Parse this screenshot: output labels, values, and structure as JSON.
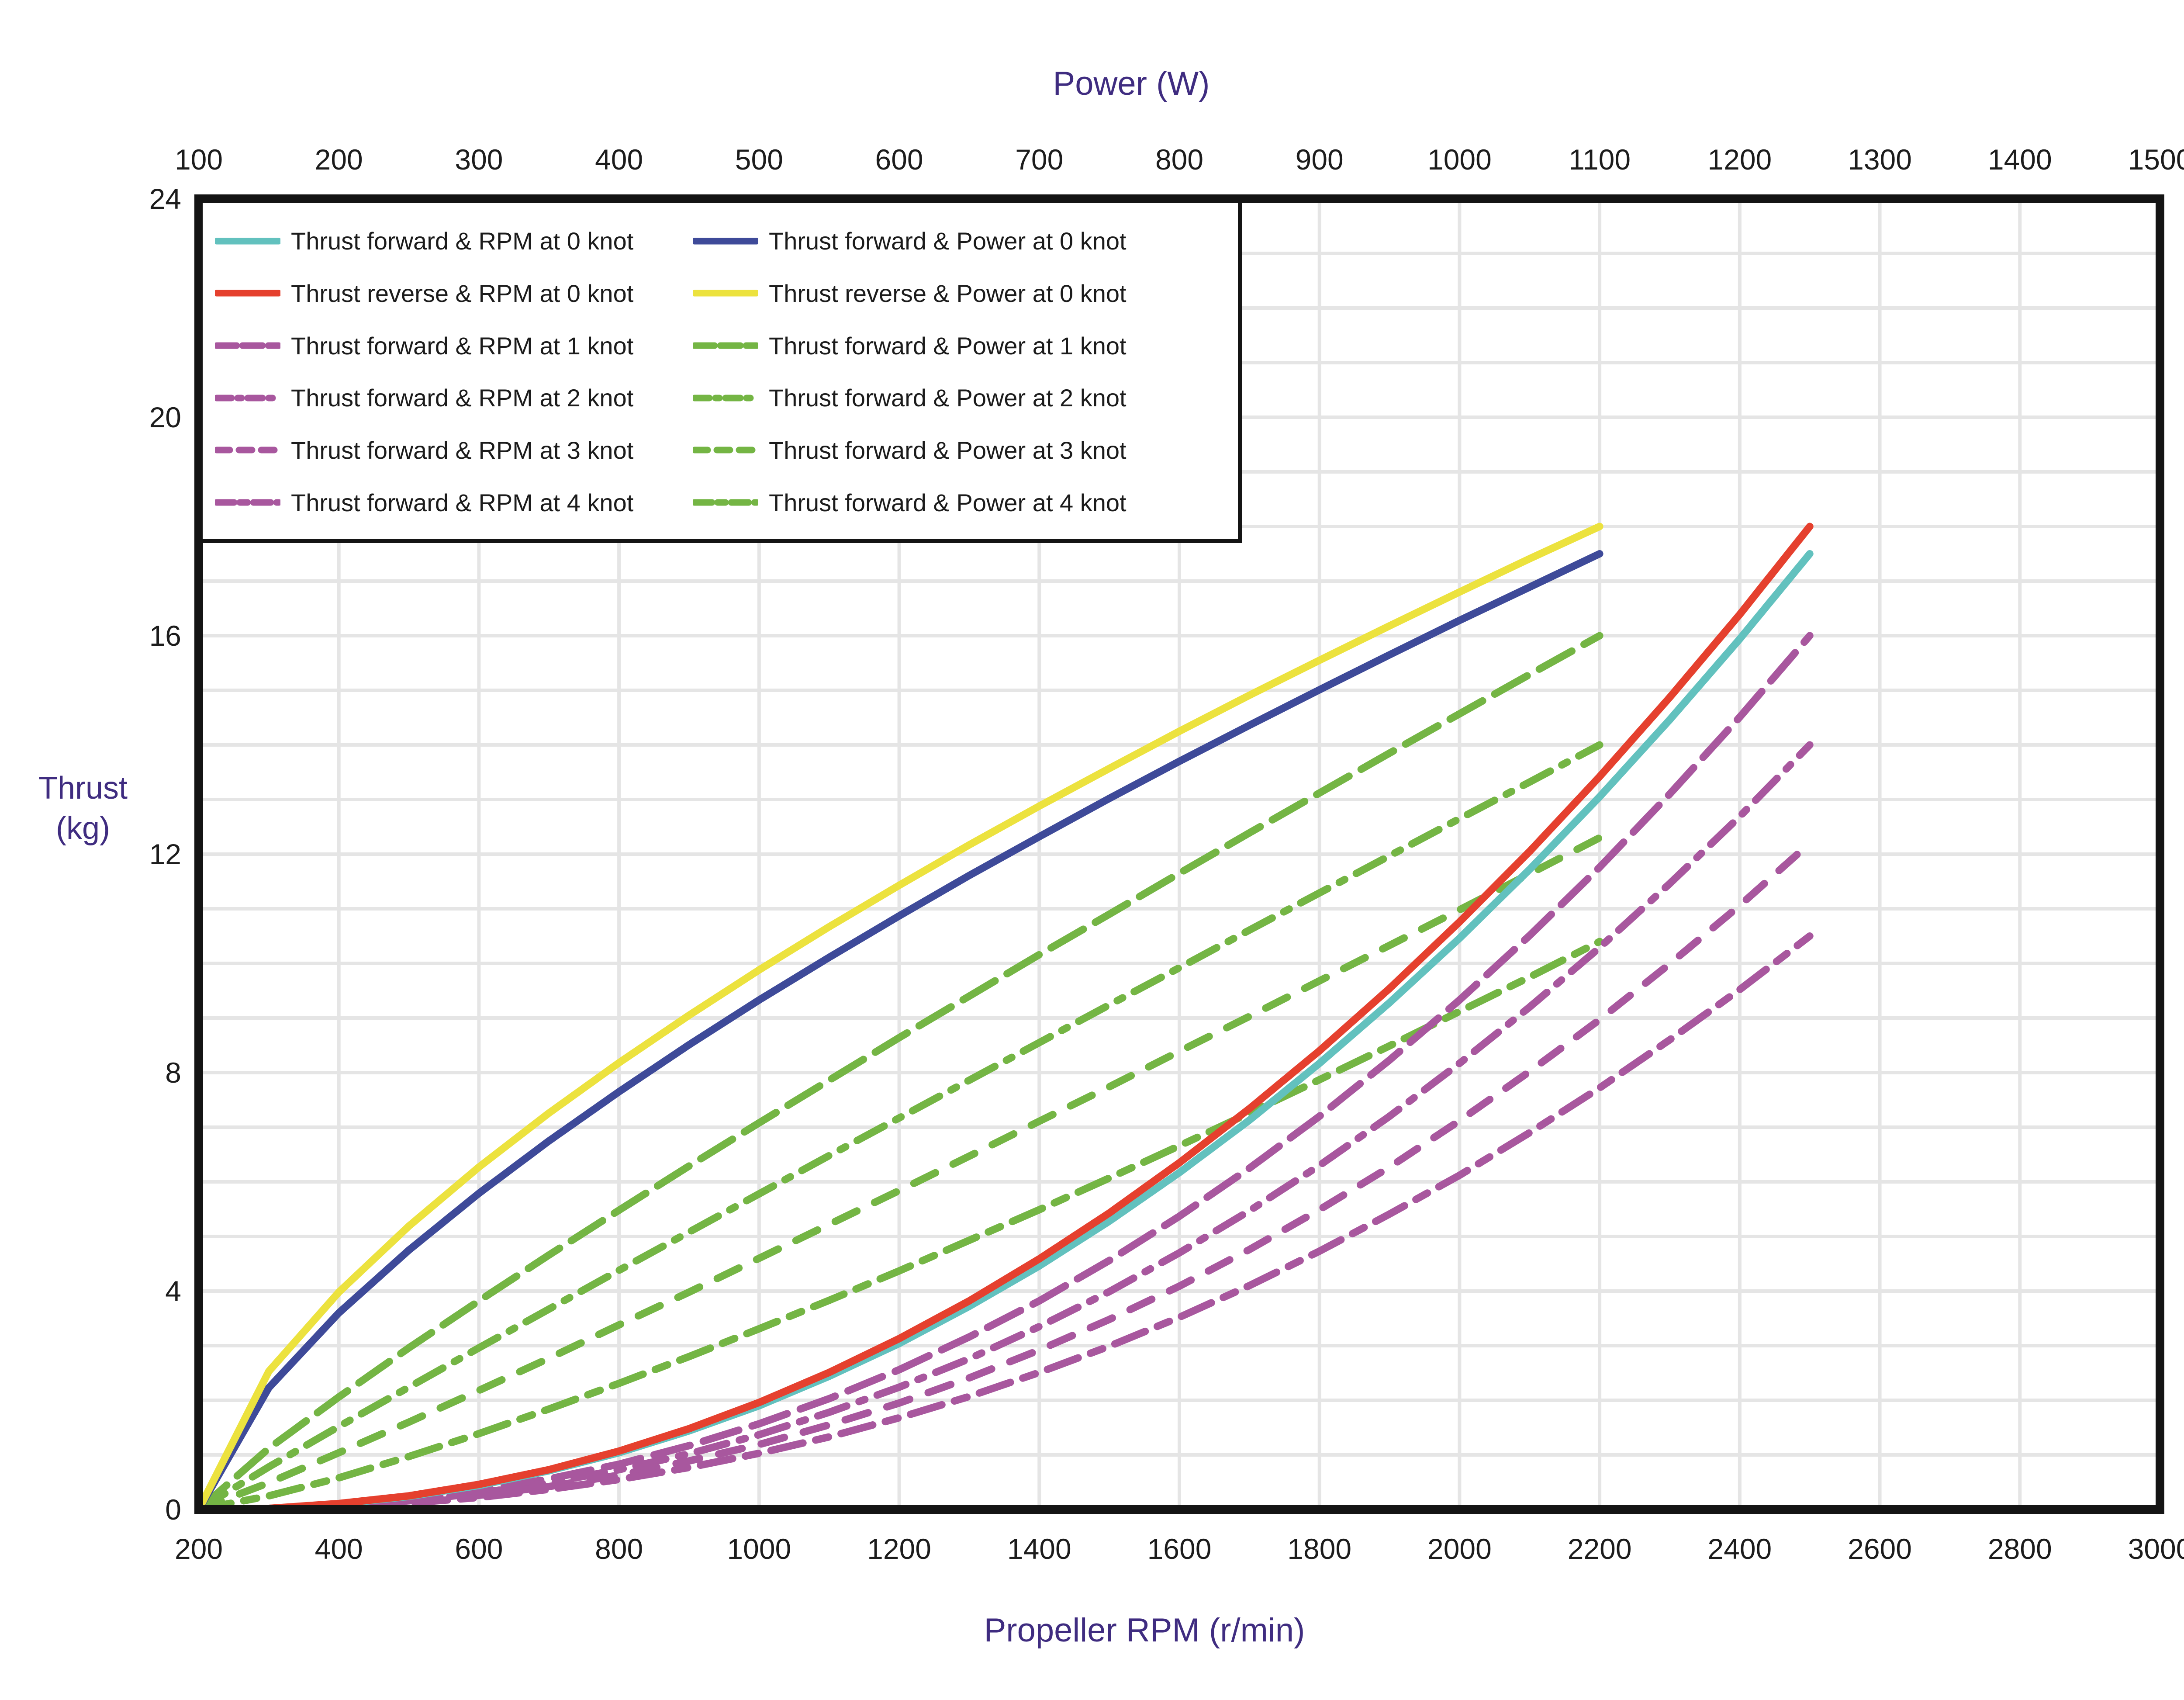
{
  "colors": {
    "teal": "#62C1BE",
    "red": "#E5402E",
    "blue": "#3E4A99",
    "yellow": "#ECE23E",
    "purple": "#A8579E",
    "green": "#74B544",
    "grid": "#E5E5E5",
    "frame": "#141414",
    "title_purple": "#3F2C80",
    "tick_text": "#1c1c1c"
  },
  "legend": {
    "rows": [
      {
        "left_label": "Thrust forward &  RPM at 0 knot",
        "left_color": "teal",
        "left_dash": "solid",
        "right_label": "Thrust forward & Power at 0 knot",
        "right_color": "blue",
        "right_dash": "solid"
      },
      {
        "left_label": "Thrust reverse  &  RPM at 0 knot",
        "left_color": "red",
        "left_dash": "solid",
        "right_label": "Thrust reverse & Power at 0 knot",
        "right_color": "yellow",
        "right_dash": "solid"
      },
      {
        "left_label": "Thrust forward &  RPM at 1 knot",
        "left_color": "purple",
        "left_dash": "longdash",
        "right_label": "Thrust forward & Power at 1 knot",
        "right_color": "green",
        "right_dash": "longdash"
      },
      {
        "left_label": "Thrust forward &  RPM at 2 knot",
        "left_color": "purple",
        "left_dash": "dashdot",
        "right_label": "Thrust forward & Power at 2 knot",
        "right_color": "green",
        "right_dash": "dashdot"
      },
      {
        "left_label": "Thrust forward &  RPM at 3 knot",
        "left_color": "purple",
        "left_dash": "dash",
        "right_label": "Thrust forward & Power at 3 knot",
        "right_color": "green",
        "right_dash": "dash"
      },
      {
        "left_label": "Thrust forward &  RPM at 4 knot",
        "left_color": "purple",
        "left_dash": "longshort",
        "right_label": "Thrust forward & Power at 4 knot",
        "right_color": "green",
        "right_dash": "longshort"
      }
    ]
  },
  "chart_data": {
    "type": "line",
    "title": "",
    "top_axis": {
      "title": "Power (W)",
      "ticks": [
        100,
        200,
        300,
        400,
        500,
        600,
        700,
        800,
        900,
        1000,
        1100,
        1200,
        1300,
        1400,
        1500
      ],
      "range": [
        100,
        1500
      ]
    },
    "bottom_axis": {
      "title": "Propeller RPM (r/min)",
      "ticks": [
        200,
        400,
        600,
        800,
        1000,
        1200,
        1400,
        1600,
        1800,
        2000,
        2200,
        2400,
        2600,
        2800,
        3000
      ],
      "range": [
        200,
        3000
      ]
    },
    "left_axis": {
      "title_line1": "Thrust",
      "title_line2": "(kg)",
      "ticks": [
        0,
        4,
        8,
        12,
        16,
        20,
        24
      ],
      "range": [
        0,
        24
      ]
    },
    "grid": {
      "x_step_rpm": 200,
      "y_step_kg": 1
    },
    "series": [
      {
        "name": "Thrust forward & Power at 1 knot",
        "axis": "power",
        "color": "green",
        "dash": "longdash",
        "x": [
          100,
          150,
          200,
          250,
          300,
          350,
          400,
          450,
          500,
          550,
          600,
          650,
          700,
          750,
          800,
          850,
          900,
          950,
          1000,
          1050,
          1100
        ],
        "y": [
          0,
          1.12,
          2.06,
          2.96,
          3.82,
          4.66,
          5.48,
          6.29,
          7.08,
          7.86,
          8.64,
          9.4,
          10.16,
          10.9,
          11.65,
          12.39,
          13.12,
          13.85,
          14.57,
          15.29,
          16
        ]
      },
      {
        "name": "Thrust forward & Power at 2 knot",
        "axis": "power",
        "color": "green",
        "dash": "dashdot",
        "x": [
          100,
          150,
          200,
          250,
          300,
          350,
          400,
          450,
          500,
          550,
          600,
          650,
          700,
          750,
          800,
          850,
          900,
          950,
          1000,
          1050,
          1100
        ],
        "y": [
          0,
          0.78,
          1.52,
          2.24,
          2.96,
          3.67,
          4.38,
          5.08,
          5.78,
          6.48,
          7.17,
          7.86,
          8.55,
          9.24,
          9.92,
          10.61,
          11.29,
          11.97,
          12.65,
          13.32,
          14
        ]
      },
      {
        "name": "Thrust forward & Power at 3 knot",
        "axis": "power",
        "color": "green",
        "dash": "dash",
        "x": [
          100,
          150,
          200,
          250,
          300,
          350,
          400,
          450,
          500,
          550,
          600,
          650,
          700,
          750,
          800,
          850,
          900,
          950,
          1000,
          1050,
          1100
        ],
        "y": [
          0,
          0.49,
          1.04,
          1.6,
          2.18,
          2.77,
          3.38,
          3.98,
          4.6,
          5.22,
          5.84,
          6.47,
          7.11,
          7.74,
          8.39,
          9.03,
          9.68,
          10.33,
          10.98,
          11.64,
          12.3
        ]
      },
      {
        "name": "Thrust forward & Power at 4 knot",
        "axis": "power",
        "color": "green",
        "dash": "longshort",
        "x": [
          100,
          150,
          200,
          250,
          300,
          350,
          400,
          450,
          500,
          550,
          600,
          650,
          700,
          750,
          800,
          850,
          900,
          950,
          1000,
          1050,
          1100
        ],
        "y": [
          0,
          0.25,
          0.58,
          0.97,
          1.39,
          1.84,
          2.31,
          2.8,
          3.31,
          3.83,
          4.37,
          4.93,
          5.49,
          6.07,
          6.66,
          7.26,
          7.87,
          8.49,
          9.12,
          9.75,
          10.4
        ]
      },
      {
        "name": "Thrust forward & Power at 0 knot",
        "axis": "power",
        "color": "blue",
        "dash": "solid",
        "x": [
          100,
          150,
          200,
          250,
          300,
          350,
          400,
          450,
          500,
          550,
          600,
          650,
          700,
          750,
          800,
          850,
          900,
          950,
          1000,
          1050,
          1100
        ],
        "y": [
          0,
          2.23,
          3.6,
          4.75,
          5.79,
          6.75,
          7.65,
          8.51,
          9.33,
          10.11,
          10.87,
          11.61,
          12.32,
          13.02,
          13.7,
          14.36,
          15.01,
          15.65,
          16.28,
          16.89,
          17.5
        ]
      },
      {
        "name": "Thrust reverse & Power at 0 knot",
        "axis": "power",
        "color": "yellow",
        "dash": "solid",
        "x": [
          100,
          150,
          200,
          250,
          300,
          350,
          400,
          450,
          500,
          550,
          600,
          650,
          700,
          750,
          800,
          850,
          900,
          950,
          1000,
          1050,
          1100
        ],
        "y": [
          0,
          2.53,
          3.98,
          5.19,
          6.27,
          7.26,
          8.18,
          9.05,
          9.88,
          10.67,
          11.43,
          12.17,
          12.88,
          13.57,
          14.25,
          14.91,
          15.55,
          16.18,
          16.8,
          17.41,
          18
        ]
      },
      {
        "name": "Thrust forward &  RPM at 1 knot",
        "axis": "rpm",
        "color": "purple",
        "dash": "longdash",
        "x": [
          200,
          300,
          400,
          500,
          600,
          700,
          800,
          900,
          1000,
          1100,
          1200,
          1300,
          1400,
          1500,
          1600,
          1700,
          1800,
          1900,
          2000,
          2100,
          2200,
          2300,
          2400,
          2500
        ],
        "y": [
          0,
          0.02,
          0.07,
          0.18,
          0.34,
          0.56,
          0.83,
          1.17,
          1.57,
          2.03,
          2.56,
          3.16,
          3.82,
          4.56,
          5.37,
          6.25,
          7.2,
          8.23,
          9.33,
          10.51,
          11.76,
          13.1,
          14.51,
          16
        ]
      },
      {
        "name": "Thrust forward &  RPM at 2 knot",
        "axis": "rpm",
        "color": "purple",
        "dash": "dashdot",
        "x": [
          200,
          300,
          400,
          500,
          600,
          700,
          800,
          900,
          1000,
          1100,
          1200,
          1300,
          1400,
          1500,
          1600,
          1700,
          1800,
          1900,
          2000,
          2100,
          2200,
          2300,
          2400,
          2500
        ],
        "y": [
          0,
          0.01,
          0.06,
          0.16,
          0.3,
          0.49,
          0.73,
          1.02,
          1.37,
          1.78,
          2.24,
          2.76,
          3.35,
          3.99,
          4.7,
          5.47,
          6.3,
          7.2,
          8.17,
          9.2,
          10.29,
          11.46,
          12.69,
          14
        ]
      },
      {
        "name": "Thrust forward &  RPM at 3 knot",
        "axis": "rpm",
        "color": "purple",
        "dash": "dash",
        "x": [
          200,
          300,
          400,
          500,
          600,
          700,
          800,
          900,
          1000,
          1100,
          1200,
          1300,
          1400,
          1500,
          1600,
          1700,
          1800,
          1900,
          2000,
          2100,
          2200,
          2300,
          2400,
          2500
        ],
        "y": [
          0,
          0.01,
          0.06,
          0.14,
          0.26,
          0.42,
          0.63,
          0.89,
          1.19,
          1.55,
          1.95,
          2.41,
          2.92,
          3.48,
          4.09,
          4.76,
          5.49,
          6.27,
          7.12,
          8.02,
          8.97,
          9.99,
          11.06,
          12.2
        ]
      },
      {
        "name": "Thrust forward &  RPM at 4 knot",
        "axis": "rpm",
        "color": "purple",
        "dash": "longshort",
        "x": [
          200,
          300,
          400,
          500,
          600,
          700,
          800,
          900,
          1000,
          1100,
          1200,
          1300,
          1400,
          1500,
          1600,
          1700,
          1800,
          1900,
          2000,
          2100,
          2200,
          2300,
          2400,
          2500
        ],
        "y": [
          0,
          0.01,
          0.05,
          0.12,
          0.22,
          0.37,
          0.55,
          0.77,
          1.03,
          1.33,
          1.68,
          2.07,
          2.51,
          2.99,
          3.52,
          4.1,
          4.73,
          5.41,
          6.12,
          6.9,
          7.72,
          8.6,
          9.52,
          10.5
        ]
      },
      {
        "name": "Thrust forward &  RPM at 0 knot",
        "axis": "rpm",
        "color": "teal",
        "dash": "solid",
        "x": [
          200,
          300,
          400,
          500,
          600,
          700,
          800,
          900,
          1000,
          1100,
          1200,
          1300,
          1400,
          1500,
          1600,
          1700,
          1800,
          1900,
          2000,
          2100,
          2200,
          2300,
          2400,
          2500
        ],
        "y": [
          0,
          0.02,
          0.1,
          0.24,
          0.44,
          0.71,
          1.04,
          1.44,
          1.9,
          2.44,
          3.04,
          3.72,
          4.46,
          5.28,
          6.17,
          7.13,
          8.17,
          9.28,
          10.46,
          11.72,
          13.05,
          14.46,
          15.94,
          17.5
        ]
      },
      {
        "name": "Thrust reverse  &  RPM at 0 knot",
        "axis": "rpm",
        "color": "red",
        "dash": "solid",
        "x": [
          200,
          300,
          400,
          500,
          600,
          700,
          800,
          900,
          1000,
          1100,
          1200,
          1300,
          1400,
          1500,
          1600,
          1700,
          1800,
          1900,
          2000,
          2100,
          2200,
          2300,
          2400,
          2500
        ],
        "y": [
          0,
          0.02,
          0.11,
          0.25,
          0.46,
          0.73,
          1.07,
          1.48,
          1.96,
          2.51,
          3.13,
          3.82,
          4.59,
          5.43,
          6.35,
          7.34,
          8.4,
          9.54,
          10.76,
          12.05,
          13.42,
          14.87,
          16.39,
          18
        ]
      }
    ]
  }
}
